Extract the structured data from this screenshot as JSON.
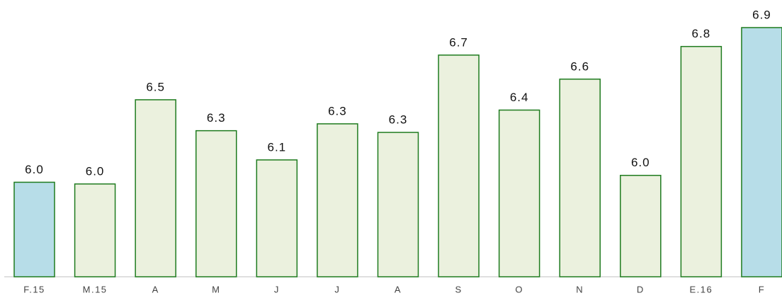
{
  "chart_data": {
    "type": "bar",
    "categories": [
      "F.15",
      "M.15",
      "A",
      "M",
      "J",
      "J",
      "A",
      "S",
      "O",
      "N",
      "D",
      "E.16",
      "F"
    ],
    "values": [
      6.0,
      5.99,
      6.48,
      6.3,
      6.13,
      6.34,
      6.29,
      6.74,
      6.42,
      6.6,
      6.04,
      6.79,
      6.9
    ],
    "value_labels": [
      "6.0",
      "6.0",
      "6.5",
      "6.3",
      "6.1",
      "6.3",
      "6.3",
      "6.7",
      "6.4",
      "6.6",
      "6.0",
      "6.8",
      "6.9"
    ],
    "colors": [
      "#b7dde8",
      "#ebf1de",
      "#ebf1de",
      "#ebf1de",
      "#ebf1de",
      "#ebf1de",
      "#ebf1de",
      "#ebf1de",
      "#ebf1de",
      "#ebf1de",
      "#ebf1de",
      "#ebf1de",
      "#b7dde8"
    ],
    "edge_color": "#1e7b1e",
    "ylim": [
      5.45,
      7.0
    ]
  }
}
